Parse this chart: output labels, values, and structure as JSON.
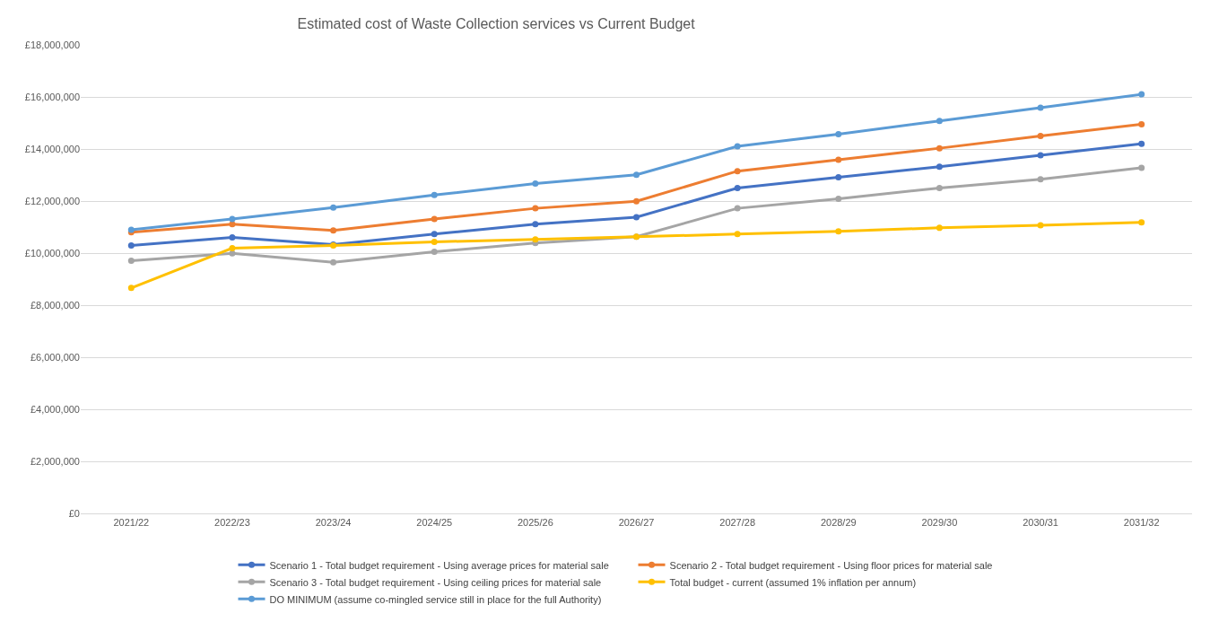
{
  "chart_data": {
    "type": "line",
    "title": "Estimated cost of Waste Collection services vs Current Budget",
    "categories": [
      "2021/22",
      "2022/23",
      "2023/24",
      "2024/25",
      "2025/26",
      "2026/27",
      "2027/28",
      "2028/29",
      "2029/30",
      "2030/31",
      "2031/32"
    ],
    "series": [
      {
        "name": "Scenario 1 - Total budget requirement - Using average prices for material sale",
        "color": "#4472c4",
        "values": [
          10290000,
          10600000,
          10330000,
          10730000,
          11110000,
          11380000,
          12500000,
          12910000,
          13320000,
          13760000,
          14200000
        ]
      },
      {
        "name": "Scenario 2 - Total budget requirement - Using floor prices for material sale",
        "color": "#ed7d31",
        "values": [
          10800000,
          11110000,
          10870000,
          11310000,
          11720000,
          11990000,
          13150000,
          13590000,
          14030000,
          14500000,
          14950000
        ]
      },
      {
        "name": "Scenario 3 - Total budget requirement - Using ceiling prices for material sale",
        "color": "#a5a5a5",
        "values": [
          9710000,
          9990000,
          9650000,
          10050000,
          10390000,
          10630000,
          11720000,
          12090000,
          12500000,
          12840000,
          13280000
        ]
      },
      {
        "name": "Total budget - current (assumed 1% inflation per annum)",
        "color": "#ffc000",
        "values": [
          8660000,
          10190000,
          10290000,
          10430000,
          10530000,
          10630000,
          10730000,
          10840000,
          10970000,
          11070000,
          11180000
        ]
      },
      {
        "name": "DO MINIMUM (assume co-mingled service still in place for the full Authority)",
        "color": "#5b9bd5",
        "values": [
          10900000,
          11310000,
          11750000,
          12230000,
          12670000,
          13010000,
          14100000,
          14570000,
          15080000,
          15590000,
          16100000
        ]
      }
    ],
    "ylim": [
      0,
      18000000
    ],
    "yticks": [
      {
        "value": 0,
        "label": "£0"
      },
      {
        "value": 2000000,
        "label": "£2,000,000"
      },
      {
        "value": 4000000,
        "label": "£4,000,000"
      },
      {
        "value": 6000000,
        "label": "£6,000,000"
      },
      {
        "value": 8000000,
        "label": "£8,000,000"
      },
      {
        "value": 10000000,
        "label": "£10,000,000"
      },
      {
        "value": 12000000,
        "label": "£12,000,000"
      },
      {
        "value": 14000000,
        "label": "£14,000,000"
      },
      {
        "value": 16000000,
        "label": "£16,000,000"
      },
      {
        "value": 18000000,
        "label": "£18,000,000"
      }
    ],
    "grid": "y",
    "legend": "bottom",
    "marker": "circle",
    "line_style": "solid"
  }
}
